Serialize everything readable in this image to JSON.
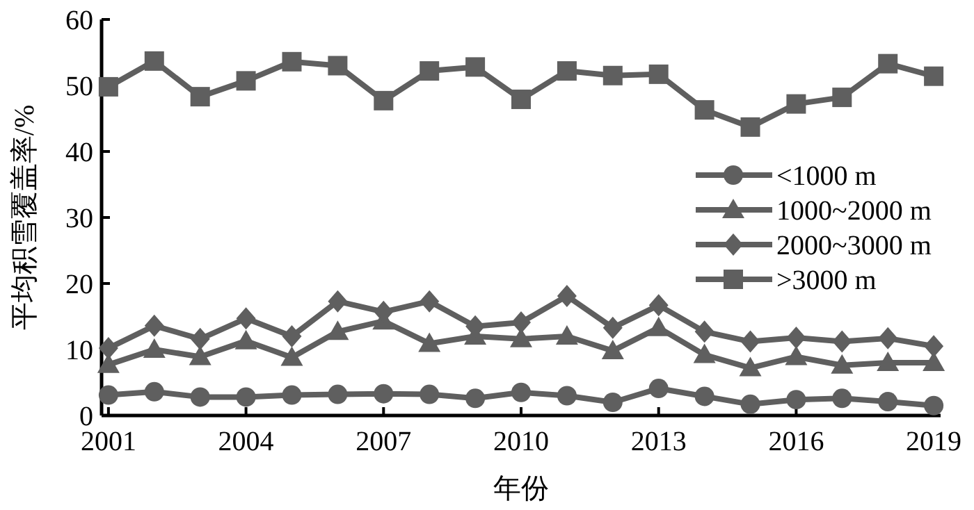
{
  "chart_data": {
    "type": "line",
    "xlabel": "年份",
    "ylabel": "平均积雪覆盖率/%",
    "x": [
      2001,
      2002,
      2003,
      2004,
      2005,
      2006,
      2007,
      2008,
      2009,
      2010,
      2011,
      2012,
      2013,
      2014,
      2015,
      2016,
      2017,
      2018,
      2019
    ],
    "xlim": [
      2000.85,
      2019.15
    ],
    "xticks": [
      2001,
      2004,
      2007,
      2010,
      2013,
      2016,
      2019
    ],
    "ylim": [
      0,
      60
    ],
    "yticks": [
      0,
      10,
      20,
      30,
      40,
      50,
      60
    ],
    "legend": "right",
    "grid": false,
    "line_style": "solid",
    "series": [
      {
        "name": "<1000 m",
        "color": "#5f5f5f",
        "marker": "circle",
        "values": [
          3.1,
          3.6,
          2.8,
          2.8,
          3.1,
          3.2,
          3.3,
          3.2,
          2.6,
          3.5,
          3.0,
          2.0,
          4.1,
          2.9,
          1.7,
          2.4,
          2.6,
          2.1,
          1.5
        ]
      },
      {
        "name": "1000~2000 m",
        "color": "#5f5f5f",
        "marker": "triangle",
        "values": [
          7.7,
          10.0,
          8.9,
          11.3,
          8.8,
          12.7,
          14.3,
          10.9,
          12.0,
          11.6,
          12.0,
          9.8,
          13.3,
          9.2,
          7.2,
          8.9,
          7.6,
          8.0,
          8.0
        ]
      },
      {
        "name": "2000~3000 m",
        "color": "#5f5f5f",
        "marker": "diamond",
        "values": [
          10.2,
          13.6,
          11.6,
          14.7,
          12.0,
          17.3,
          15.7,
          17.3,
          13.5,
          14.1,
          18.1,
          13.3,
          16.7,
          12.7,
          11.2,
          11.8,
          11.2,
          11.7,
          10.5
        ]
      },
      {
        "name": ">3000 m",
        "color": "#5f5f5f",
        "marker": "square",
        "values": [
          49.8,
          53.7,
          48.3,
          50.7,
          53.6,
          53.0,
          47.7,
          52.2,
          52.8,
          47.9,
          52.2,
          51.5,
          51.7,
          46.3,
          43.7,
          47.2,
          48.2,
          53.3,
          51.4
        ]
      }
    ]
  }
}
